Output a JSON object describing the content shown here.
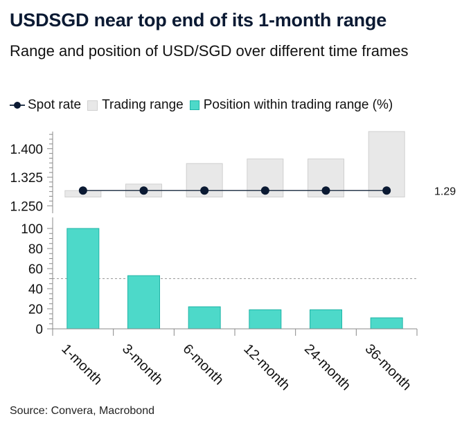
{
  "header": {
    "title": "USDSGD near top end of its 1-month range",
    "subtitle": "Range and position of USD/SGD over different time frames"
  },
  "legend": {
    "spot": "Spot rate",
    "range": "Trading range",
    "position": "Position within trading range (%)"
  },
  "footer": {
    "source": "Source: Convera, Macrobond"
  },
  "colors": {
    "spot": "#0b1a33",
    "range_fill": "#e8e8e8",
    "range_stroke": "#cfcfcf",
    "bar_fill": "#4dd9c9",
    "bar_stroke": "#1fb4a6",
    "reference": "#999999"
  },
  "chart_data": [
    {
      "type": "range",
      "categories": [
        "1-month",
        "3-month",
        "6-month",
        "12-month",
        "24-month",
        "36-month"
      ],
      "range_low": [
        1.273,
        1.273,
        1.273,
        1.273,
        1.273,
        1.273
      ],
      "range_high": [
        1.29,
        1.307,
        1.361,
        1.373,
        1.373,
        1.445
      ],
      "spot": [
        1.29,
        1.29,
        1.29,
        1.29,
        1.29,
        1.29
      ],
      "spot_label": "1.29",
      "yticks": [
        "1.250",
        "1.325",
        "1.400"
      ],
      "ylim": [
        1.245,
        1.445
      ]
    },
    {
      "type": "bar",
      "categories": [
        "1-month",
        "3-month",
        "6-month",
        "12-month",
        "24-month",
        "36-month"
      ],
      "values": [
        100,
        53,
        22,
        19,
        19,
        11
      ],
      "yticks": [
        "0",
        "20",
        "40",
        "60",
        "80",
        "100"
      ],
      "ylim": [
        0,
        100
      ],
      "reference_line": 50
    }
  ]
}
